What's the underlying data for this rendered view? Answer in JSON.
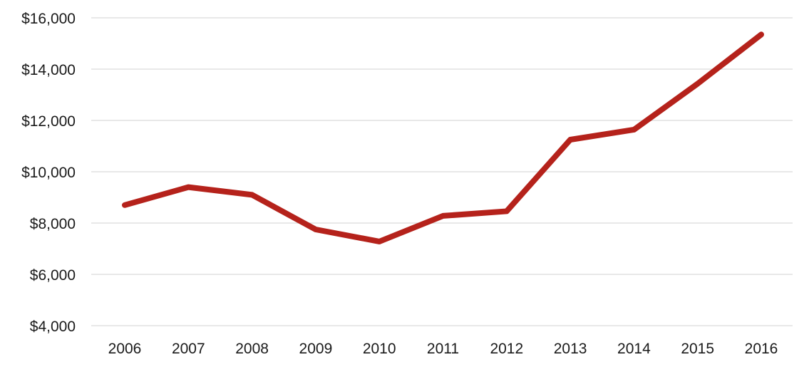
{
  "chart_data": {
    "type": "line",
    "title": "",
    "xlabel": "",
    "ylabel": "",
    "categories": [
      "2006",
      "2007",
      "2008",
      "2009",
      "2010",
      "2011",
      "2012",
      "2013",
      "2014",
      "2015",
      "2016"
    ],
    "series": [
      {
        "values": [
          8700,
          9400,
          9100,
          7750,
          7280,
          8280,
          8460,
          11250,
          11640,
          13430,
          15350
        ],
        "color": "#b5221b"
      }
    ],
    "ylim": [
      4000,
      16000
    ],
    "yticks": [
      4000,
      6000,
      8000,
      10000,
      12000,
      14000,
      16000
    ],
    "ytick_labels": [
      "$4,000",
      "$6,000",
      "$8,000",
      "$10,000",
      "$12,000",
      "$14,000",
      "$16,000"
    ],
    "grid": true,
    "legend": "none"
  }
}
